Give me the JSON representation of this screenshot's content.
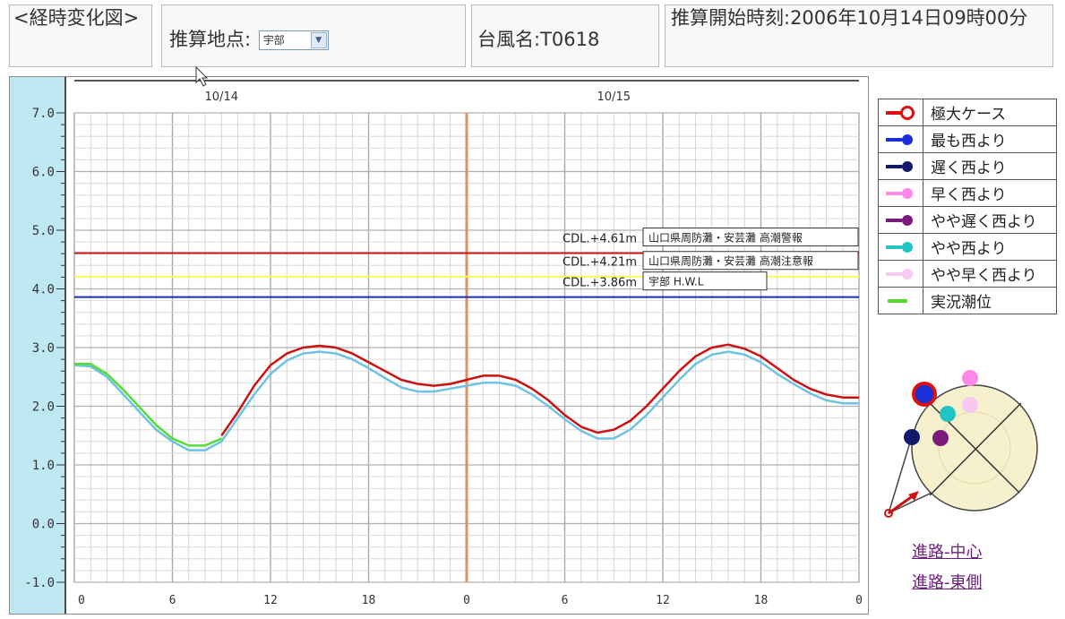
{
  "header": {
    "title": "<経時変化図>",
    "point_label": "推算地点:",
    "point_value": "宇部",
    "typhoon": "台風名:T0618",
    "start_time": "推算開始時刻:2006年10月14日09時00分"
  },
  "chart_data": {
    "type": "line",
    "title": "",
    "xlabel": "",
    "ylabel": "",
    "ylim": [
      -1.0,
      7.0
    ],
    "y_ticks": [
      "7.0",
      "6.0",
      "5.0",
      "4.0",
      "3.0",
      "2.0",
      "1.0",
      "0.0",
      "-1.0"
    ],
    "x_hour_ticks": [
      "0",
      "6",
      "12",
      "18",
      "0",
      "6",
      "12",
      "18",
      "0"
    ],
    "date_labels": [
      {
        "hour": 9,
        "label": "10/14"
      },
      {
        "hour": 33,
        "label": "10/15"
      }
    ],
    "current_time_hour": 24,
    "grid": true,
    "thresholds": [
      {
        "value": 4.61,
        "label": "CDL.+4.61m",
        "box": "山口県周防灘・安芸灘 高潮警報",
        "color": "#cc1111"
      },
      {
        "value": 4.21,
        "label": "CDL.+4.21m",
        "box": "山口県周防灘・安芸灘 高潮注意報",
        "color": "#ffff55"
      },
      {
        "value": 3.86,
        "label": "CDL.+3.86m",
        "box": "宇部 H.W.L",
        "color": "#1a2fb8"
      }
    ],
    "series": [
      {
        "name": "極大ケース",
        "color": "#cc1111",
        "x": [
          9,
          10,
          11,
          12,
          13,
          14,
          15,
          16,
          17,
          18,
          19,
          20,
          21,
          22,
          23,
          24,
          25,
          26,
          27,
          28,
          29,
          30,
          31,
          32,
          33,
          34,
          35,
          36,
          37,
          38,
          39,
          40,
          41,
          42,
          43,
          44,
          45,
          46,
          47,
          48
        ],
        "y": [
          1.5,
          1.9,
          2.35,
          2.7,
          2.9,
          3.0,
          3.03,
          3.0,
          2.9,
          2.75,
          2.6,
          2.45,
          2.38,
          2.35,
          2.38,
          2.45,
          2.52,
          2.52,
          2.45,
          2.3,
          2.1,
          1.85,
          1.65,
          1.55,
          1.6,
          1.75,
          2.0,
          2.3,
          2.6,
          2.85,
          3.0,
          3.05,
          2.98,
          2.85,
          2.65,
          2.45,
          2.3,
          2.2,
          2.15,
          2.15
        ]
      },
      {
        "name": "やや西より",
        "color": "#6ec3e2",
        "x": [
          0,
          1,
          2,
          3,
          4,
          5,
          6,
          7,
          8,
          9,
          10,
          11,
          12,
          13,
          14,
          15,
          16,
          17,
          18,
          19,
          20,
          21,
          22,
          23,
          24,
          25,
          26,
          27,
          28,
          29,
          30,
          31,
          32,
          33,
          34,
          35,
          36,
          37,
          38,
          39,
          40,
          41,
          42,
          43,
          44,
          45,
          46,
          47,
          48
        ],
        "y": [
          2.7,
          2.68,
          2.5,
          2.2,
          1.9,
          1.6,
          1.4,
          1.25,
          1.25,
          1.4,
          1.8,
          2.2,
          2.55,
          2.78,
          2.9,
          2.93,
          2.9,
          2.8,
          2.65,
          2.48,
          2.32,
          2.25,
          2.25,
          2.3,
          2.35,
          2.4,
          2.4,
          2.35,
          2.2,
          2.0,
          1.78,
          1.58,
          1.45,
          1.45,
          1.6,
          1.85,
          2.15,
          2.45,
          2.72,
          2.88,
          2.93,
          2.88,
          2.75,
          2.55,
          2.38,
          2.22,
          2.1,
          2.05,
          2.05
        ]
      },
      {
        "name": "実況潮位",
        "color": "#55dd33",
        "x": [
          0,
          1,
          2,
          3,
          4,
          5,
          6,
          7,
          8,
          9
        ],
        "y": [
          2.72,
          2.72,
          2.55,
          2.28,
          1.98,
          1.68,
          1.45,
          1.33,
          1.33,
          1.45
        ]
      }
    ]
  },
  "legend": {
    "items": [
      {
        "label": "極大ケース",
        "color": "#dd1111",
        "marker": "ring"
      },
      {
        "label": "最も西より",
        "color": "#1a2fd8",
        "marker": "dot"
      },
      {
        "label": "遅く西より",
        "color": "#141a6a",
        "marker": "dot"
      },
      {
        "label": "早く西より",
        "color": "#ff88e8",
        "marker": "dot"
      },
      {
        "label": "やや遅く西より",
        "color": "#7a1a7a",
        "marker": "dot"
      },
      {
        "label": "やや西より",
        "color": "#22c4c4",
        "marker": "dot"
      },
      {
        "label": "やや早く西より",
        "color": "#f6c8f2",
        "marker": "dot"
      },
      {
        "label": "実況潮位",
        "color": "#55dd33",
        "marker": "line"
      }
    ]
  },
  "links": {
    "center": "進路-中心",
    "east": "進路-東側"
  },
  "icons": {
    "cursor": "mouse-pointer-icon",
    "dropdown": "chevron-down-icon"
  }
}
